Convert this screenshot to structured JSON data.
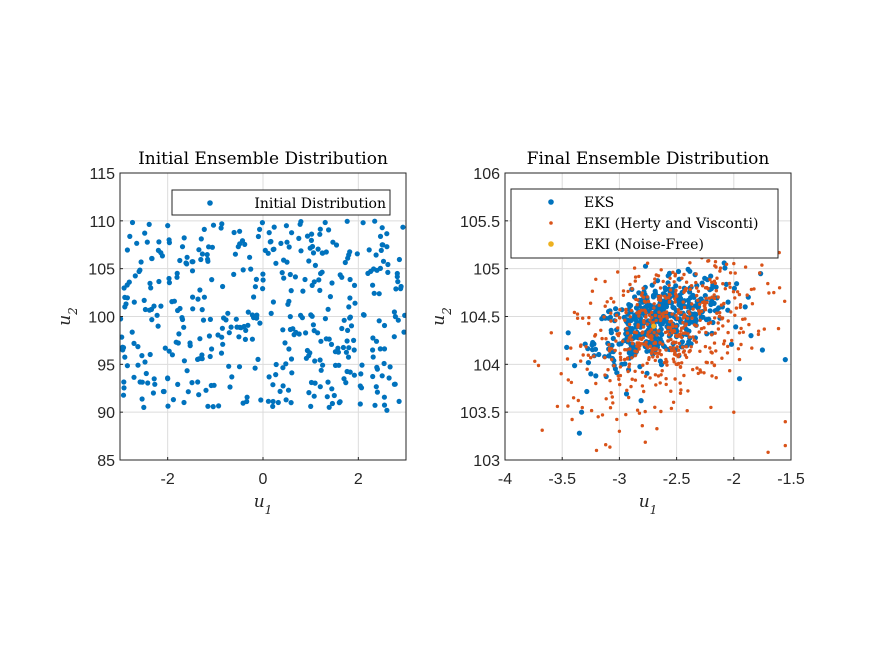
{
  "chart_data": [
    {
      "type": "scatter",
      "title": "Initial Ensemble Distribution",
      "xlabel": "u",
      "xlabel_sub": "1",
      "ylabel": "u",
      "ylabel_sub": "2",
      "xlim": [
        -3,
        3
      ],
      "ylim": [
        85,
        115
      ],
      "xticks": [
        -2,
        0,
        2
      ],
      "xtick_labels": [
        "-2",
        "0",
        "2"
      ],
      "yticks": [
        85,
        90,
        95,
        100,
        105,
        110,
        115
      ],
      "ytick_labels": [
        "85",
        "90",
        "95",
        "100",
        "105",
        "110",
        "115"
      ],
      "grid": true,
      "legend_position": "top-right",
      "series": [
        {
          "name": "Initial Distribution",
          "color": "#0072BD",
          "distribution": {
            "kind": "uniform",
            "count": 400,
            "x_range": [
              -3,
              3
            ],
            "y_range": [
              90.5,
              110
            ]
          },
          "points": [
            [
              -2.9,
              102
            ],
            [
              -2.9,
              101
            ],
            [
              -2.7,
              101.5
            ],
            [
              -2.6,
              104.7
            ],
            [
              -2.5,
              90.5
            ],
            [
              -2.3,
              92
            ],
            [
              -2.2,
              99
            ],
            [
              -2.0,
              109.5
            ],
            [
              -2.0,
              93.5
            ],
            [
              -1.9,
              96
            ],
            [
              -1.8,
              104.5
            ],
            [
              -1.6,
              105.5
            ],
            [
              2.1,
              109.8
            ],
            [
              2.2,
              104.5
            ],
            [
              2.3,
              96.5
            ],
            [
              2.4,
              94.5
            ],
            [
              2.5,
              107.5
            ],
            [
              2.6,
              107.3
            ],
            [
              2.6,
              90.2
            ],
            [
              2.5,
              93.8
            ],
            [
              1.8,
              101
            ],
            [
              1.7,
              93.5
            ],
            [
              1.9,
              97.5
            ],
            [
              1.6,
              91
            ]
          ]
        }
      ]
    },
    {
      "type": "scatter",
      "title": "Final Ensemble Distribution",
      "xlabel": "u",
      "xlabel_sub": "1",
      "ylabel": "u",
      "ylabel_sub": "2",
      "xlim": [
        -4,
        -1.5
      ],
      "ylim": [
        103,
        106
      ],
      "xticks": [
        -4,
        -3.5,
        -3,
        -2.5,
        -2,
        -1.5
      ],
      "xtick_labels": [
        "-4",
        "-3.5",
        "-3",
        "-2.5",
        "-2",
        "-1.5"
      ],
      "yticks": [
        103,
        103.5,
        104,
        104.5,
        105,
        105.5,
        106
      ],
      "ytick_labels": [
        "103",
        "103.5",
        "104",
        "104.5",
        "105",
        "105.5",
        "106"
      ],
      "grid": true,
      "legend_position": "top-left",
      "series": [
        {
          "name": "EKS",
          "color": "#0072BD",
          "marker_size": "large",
          "distribution": {
            "kind": "gaussian",
            "count": 450,
            "center": [
              -2.65,
              104.45
            ],
            "spread": [
              0.28,
              0.22
            ],
            "correlation": 0.5
          },
          "points": [
            [
              -3.35,
              103.28
            ],
            [
              -3.33,
              103.5
            ],
            [
              -3.25,
              103.9
            ],
            [
              -2.1,
              104.6
            ],
            [
              -1.85,
              104.3
            ],
            [
              -1.55,
              104.05
            ],
            [
              -1.75,
              104.15
            ],
            [
              -1.95,
              103.85
            ],
            [
              -2.05,
              104.65
            ],
            [
              -1.9,
              104.6
            ]
          ]
        },
        {
          "name": "EKI (Herty and Visconti)",
          "color": "#D95319",
          "marker_size": "small",
          "distribution": {
            "kind": "gaussian",
            "count": 550,
            "center": [
              -2.6,
              104.35
            ],
            "spread": [
              0.38,
              0.38
            ],
            "correlation": 0.4
          },
          "points": [
            [
              -3.4,
              103.65
            ],
            [
              -3.2,
              103.1
            ],
            [
              -3.0,
              103.3
            ],
            [
              -2.2,
              103.55
            ],
            [
              -1.7,
              103.08
            ],
            [
              -1.55,
              103.15
            ],
            [
              -1.6,
              104.8
            ],
            [
              -1.65,
              104.75
            ],
            [
              -1.55,
              103.4
            ],
            [
              -2.1,
              105.2
            ],
            [
              -1.95,
              104.05
            ],
            [
              -2.0,
              103.5
            ]
          ]
        },
        {
          "name": "EKI (Noise-Free)",
          "color": "#EDB120",
          "marker_size": "large",
          "points": [
            [
              -2.7,
              104.4
            ]
          ]
        }
      ]
    }
  ]
}
